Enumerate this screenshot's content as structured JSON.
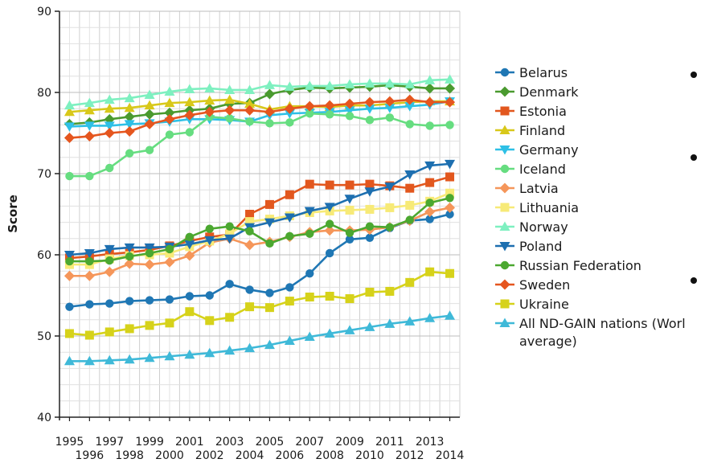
{
  "chart_data": {
    "type": "line",
    "ylabel": "Score",
    "xlabel": "",
    "ylim": [
      40,
      90
    ],
    "yticks": [
      40,
      50,
      60,
      70,
      80,
      90
    ],
    "x": [
      1995,
      1996,
      1997,
      1998,
      1999,
      2000,
      2001,
      2002,
      2003,
      2004,
      2005,
      2006,
      2007,
      2008,
      2009,
      2010,
      2011,
      2012,
      2013,
      2014
    ],
    "x_tick_labels_top": [
      "1995",
      "1997",
      "1999",
      "2001",
      "2003",
      "2005",
      "2007",
      "2009",
      "2011",
      "2013"
    ],
    "x_tick_labels_bottom": [
      "1996",
      "1998",
      "2000",
      "2002",
      "2004",
      "2006",
      "2008",
      "2010",
      "2012",
      "2014"
    ],
    "grid": true,
    "legend_position": "right",
    "series": [
      {
        "name": "Belarus",
        "color": "#1f77b4",
        "marker": "circle",
        "values": [
          53.6,
          53.9,
          54.0,
          54.3,
          54.4,
          54.5,
          54.9,
          55.0,
          56.4,
          55.7,
          55.3,
          56.0,
          57.7,
          60.2,
          61.9,
          62.1,
          63.3,
          64.2,
          64.4,
          65.0
        ]
      },
      {
        "name": "Denmark",
        "color": "#4a9a2f",
        "marker": "diamond",
        "values": [
          76.1,
          76.3,
          76.7,
          77.0,
          77.3,
          77.5,
          77.8,
          78.0,
          78.6,
          78.7,
          79.8,
          80.3,
          80.6,
          80.5,
          80.6,
          80.7,
          80.9,
          80.7,
          80.5,
          80.5
        ]
      },
      {
        "name": "Estonia",
        "color": "#e2571e",
        "marker": "square",
        "values": [
          59.6,
          59.8,
          60.1,
          60.3,
          60.6,
          61.1,
          61.7,
          62.2,
          62.5,
          65.0,
          66.2,
          67.4,
          68.7,
          68.6,
          68.6,
          68.7,
          68.5,
          68.2,
          68.9,
          69.6
        ]
      },
      {
        "name": "Finland",
        "color": "#d8c81a",
        "marker": "triangle-up",
        "values": [
          77.6,
          77.8,
          78.0,
          78.1,
          78.4,
          78.7,
          78.8,
          79.0,
          79.1,
          78.6,
          77.9,
          78.3,
          78.3,
          78.2,
          78.4,
          78.4,
          78.6,
          78.8,
          78.9,
          78.9
        ]
      },
      {
        "name": "Germany",
        "color": "#2ec0e6",
        "marker": "triangle-down",
        "values": [
          75.8,
          75.9,
          75.9,
          76.1,
          76.2,
          76.4,
          76.7,
          76.7,
          76.6,
          76.4,
          77.2,
          77.4,
          77.5,
          77.6,
          77.8,
          78.0,
          78.1,
          78.3,
          78.5,
          78.9
        ]
      },
      {
        "name": "Iceland",
        "color": "#66dd80",
        "marker": "circle",
        "values": [
          69.7,
          69.7,
          70.7,
          72.5,
          72.9,
          74.8,
          75.1,
          77.0,
          76.8,
          76.4,
          76.2,
          76.3,
          77.4,
          77.3,
          77.1,
          76.6,
          76.9,
          76.1,
          75.9,
          76.0
        ]
      },
      {
        "name": "Latvia",
        "color": "#f5965a",
        "marker": "diamond",
        "values": [
          57.4,
          57.4,
          57.9,
          58.9,
          58.8,
          59.1,
          59.9,
          61.5,
          62.0,
          61.2,
          61.6,
          62.2,
          62.8,
          63.0,
          63.0,
          63.1,
          63.4,
          64.2,
          65.3,
          65.8
        ]
      },
      {
        "name": "Lithuania",
        "color": "#f7ea77",
        "marker": "square",
        "values": [
          58.8,
          58.8,
          59.5,
          59.9,
          60.0,
          60.2,
          61.0,
          61.7,
          62.6,
          64.1,
          64.4,
          64.8,
          65.2,
          65.4,
          65.5,
          65.6,
          65.8,
          66.1,
          66.6,
          67.6
        ]
      },
      {
        "name": "Norway",
        "color": "#7ef0c0",
        "marker": "triangle-up",
        "values": [
          78.4,
          78.7,
          79.1,
          79.3,
          79.7,
          80.1,
          80.4,
          80.5,
          80.3,
          80.3,
          80.9,
          80.7,
          80.8,
          80.8,
          81.0,
          81.1,
          81.1,
          81.0,
          81.5,
          81.6
        ]
      },
      {
        "name": "Poland",
        "color": "#1d6fb0",
        "marker": "triangle-down",
        "values": [
          60.0,
          60.2,
          60.7,
          60.9,
          60.9,
          61.0,
          61.3,
          61.8,
          62.0,
          63.4,
          64.0,
          64.6,
          65.4,
          65.9,
          66.9,
          67.8,
          68.4,
          69.9,
          71.0,
          71.2
        ]
      },
      {
        "name": "Russian Federation",
        "color": "#4ba830",
        "marker": "circle",
        "values": [
          59.2,
          59.2,
          59.3,
          59.8,
          60.2,
          60.7,
          62.2,
          63.2,
          63.5,
          62.9,
          61.4,
          62.3,
          62.6,
          63.8,
          62.7,
          63.5,
          63.4,
          64.3,
          66.4,
          67.0
        ]
      },
      {
        "name": "Sweden",
        "color": "#e5561f",
        "marker": "diamond",
        "values": [
          74.4,
          74.6,
          75.0,
          75.2,
          76.1,
          76.7,
          77.2,
          77.6,
          77.8,
          77.8,
          77.6,
          78.0,
          78.3,
          78.4,
          78.6,
          78.8,
          78.9,
          79.1,
          78.8,
          78.8
        ]
      },
      {
        "name": "Ukraine",
        "color": "#d6d21a",
        "marker": "square",
        "values": [
          50.3,
          50.1,
          50.5,
          50.9,
          51.3,
          51.6,
          53.0,
          51.9,
          52.3,
          53.6,
          53.5,
          54.3,
          54.8,
          54.9,
          54.6,
          55.4,
          55.5,
          56.6,
          57.9,
          57.7
        ]
      },
      {
        "name": "All ND-GAIN nations (World average)",
        "display_lines": [
          "All ND-GAIN nations (Worl",
          "average)"
        ],
        "color": "#3fb9d8",
        "marker": "triangle-up",
        "values": [
          46.9,
          46.9,
          47.0,
          47.1,
          47.3,
          47.5,
          47.7,
          47.9,
          48.2,
          48.5,
          48.9,
          49.4,
          49.9,
          50.3,
          50.7,
          51.1,
          51.5,
          51.8,
          52.2,
          52.5
        ]
      }
    ]
  }
}
